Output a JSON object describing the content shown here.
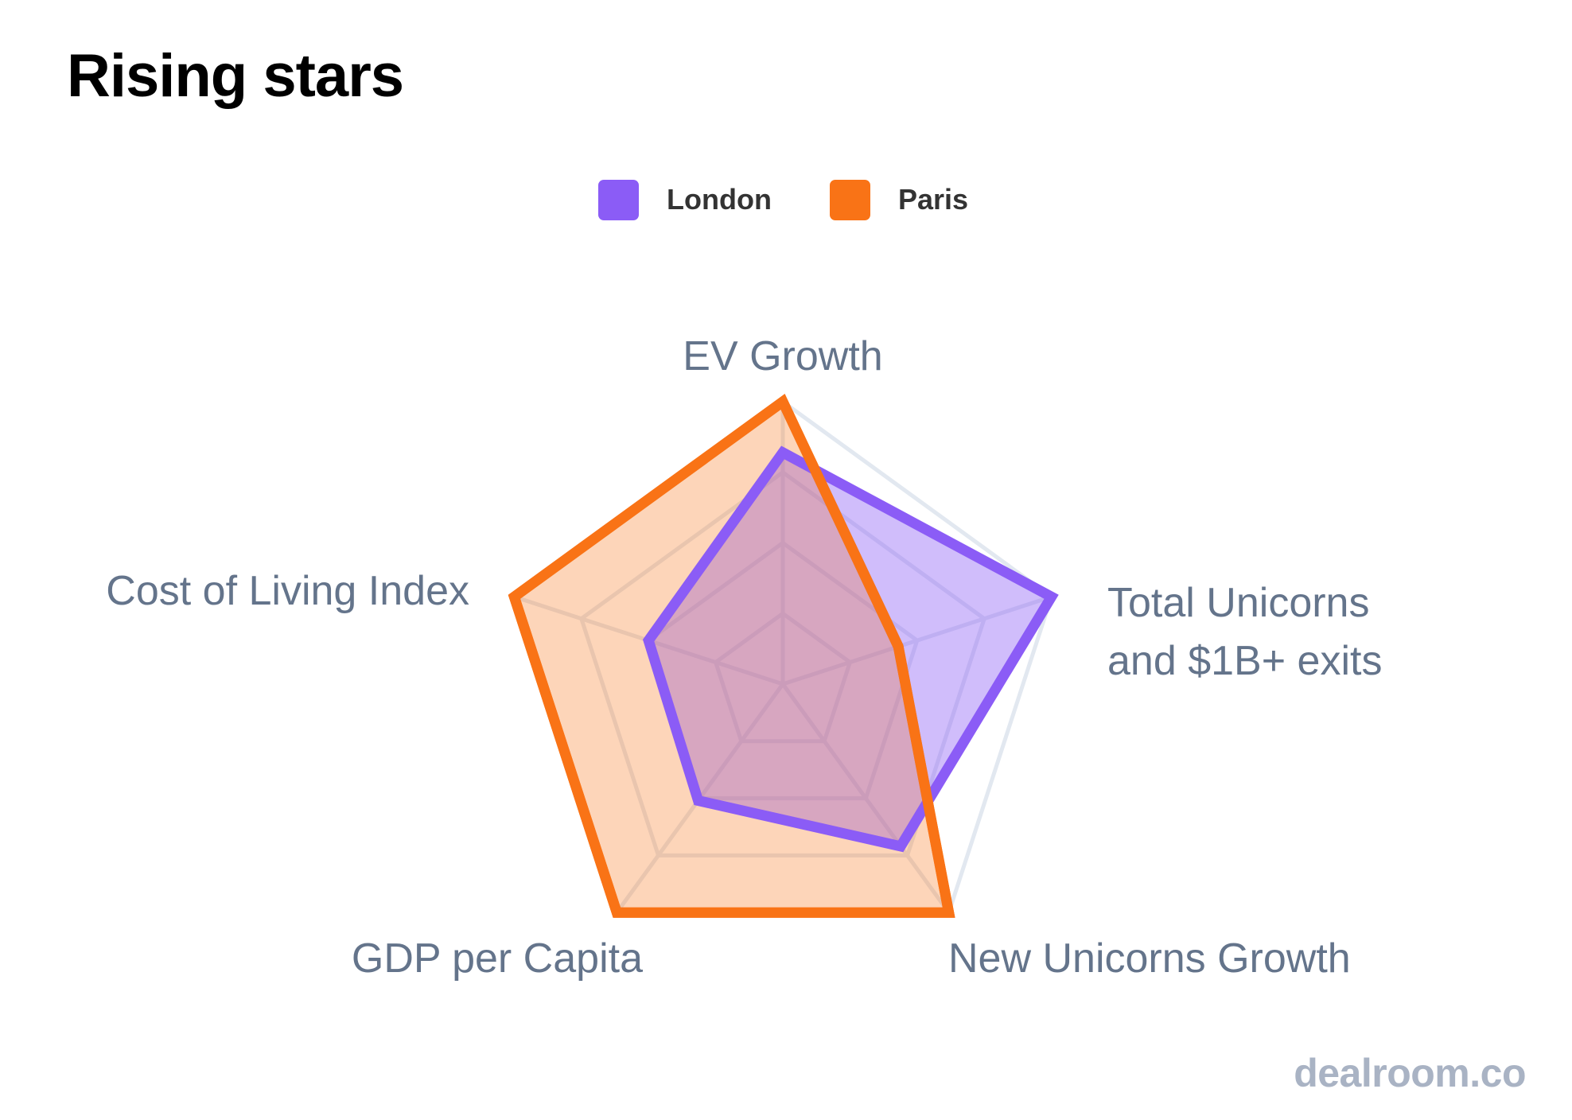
{
  "chart_data": {
    "type": "radar",
    "title": "Rising stars",
    "axes": [
      "EV Growth",
      "Total Unicorns and $1B+ exits",
      "New Unicorns Growth",
      "GDP per Capita",
      "Cost of Living Index"
    ],
    "axis_label_lines": [
      [
        "EV Growth"
      ],
      [
        "Total Unicorns",
        "and $1B+ exits"
      ],
      [
        "New Unicorns Growth"
      ],
      [
        "GDP per Capita"
      ],
      [
        "Cost of Living Index"
      ]
    ],
    "range": [
      0,
      1
    ],
    "grid_rings": 4,
    "grid": true,
    "legend_position": "top-center",
    "series": [
      {
        "name": "London",
        "color": "#8b5cf6",
        "values": [
          0.82,
          1.0,
          0.71,
          0.51,
          0.5
        ]
      },
      {
        "name": "Paris",
        "color": "#f97316",
        "values": [
          1.0,
          0.43,
          1.0,
          1.0,
          1.0
        ]
      }
    ]
  },
  "legend": [
    {
      "label": "London",
      "color": "#8b5cf6"
    },
    {
      "label": "Paris",
      "color": "#f97316"
    }
  ],
  "watermark": "dealroom.co"
}
